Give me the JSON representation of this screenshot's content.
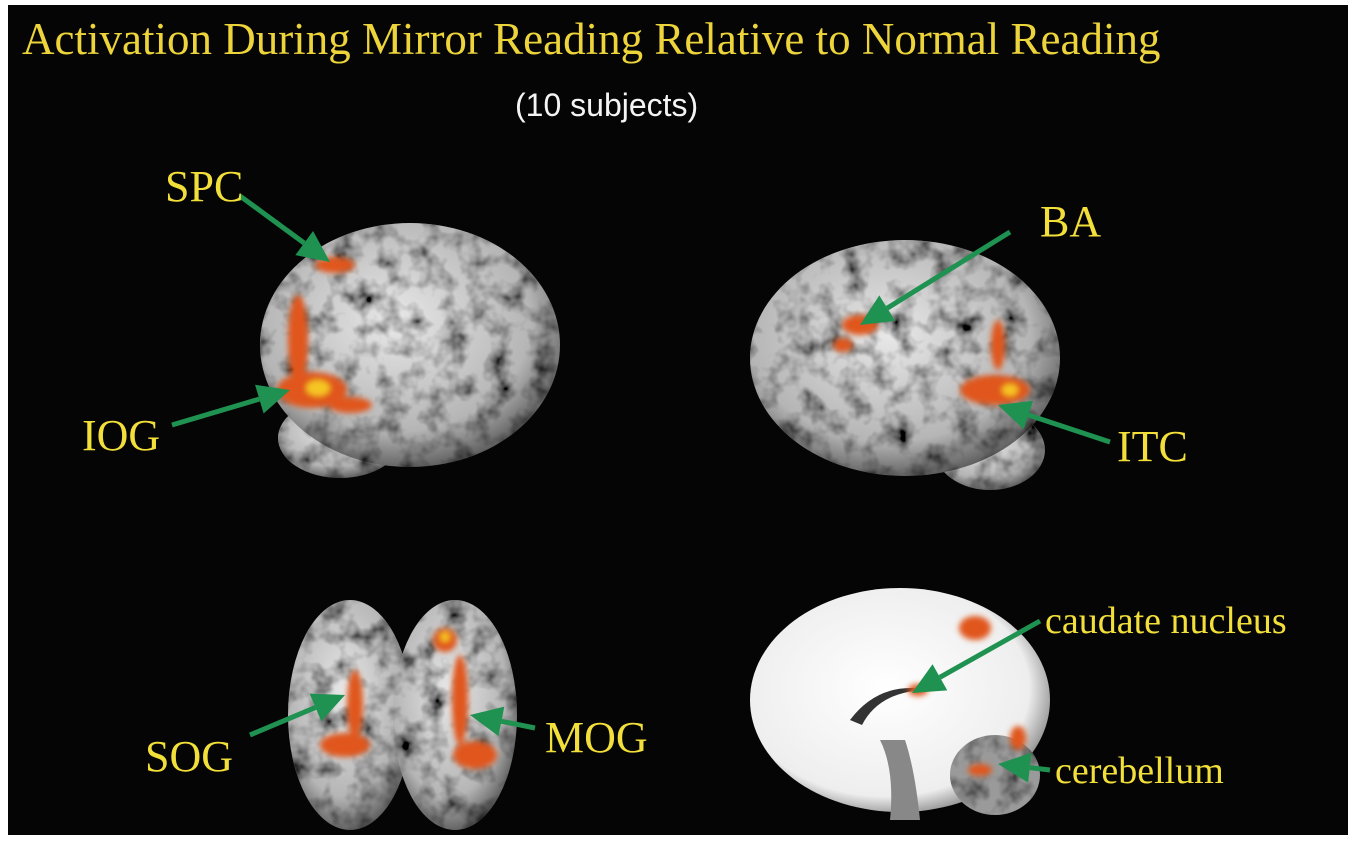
{
  "title": "Activation During Mirror Reading Relative to Normal Reading",
  "subtitle": "(10 subjects)",
  "labels": [
    "SPC",
    "IOG",
    "BA",
    "ITC",
    "SOG",
    "MOG",
    "caudate nucleus",
    "cerebellum"
  ]
}
